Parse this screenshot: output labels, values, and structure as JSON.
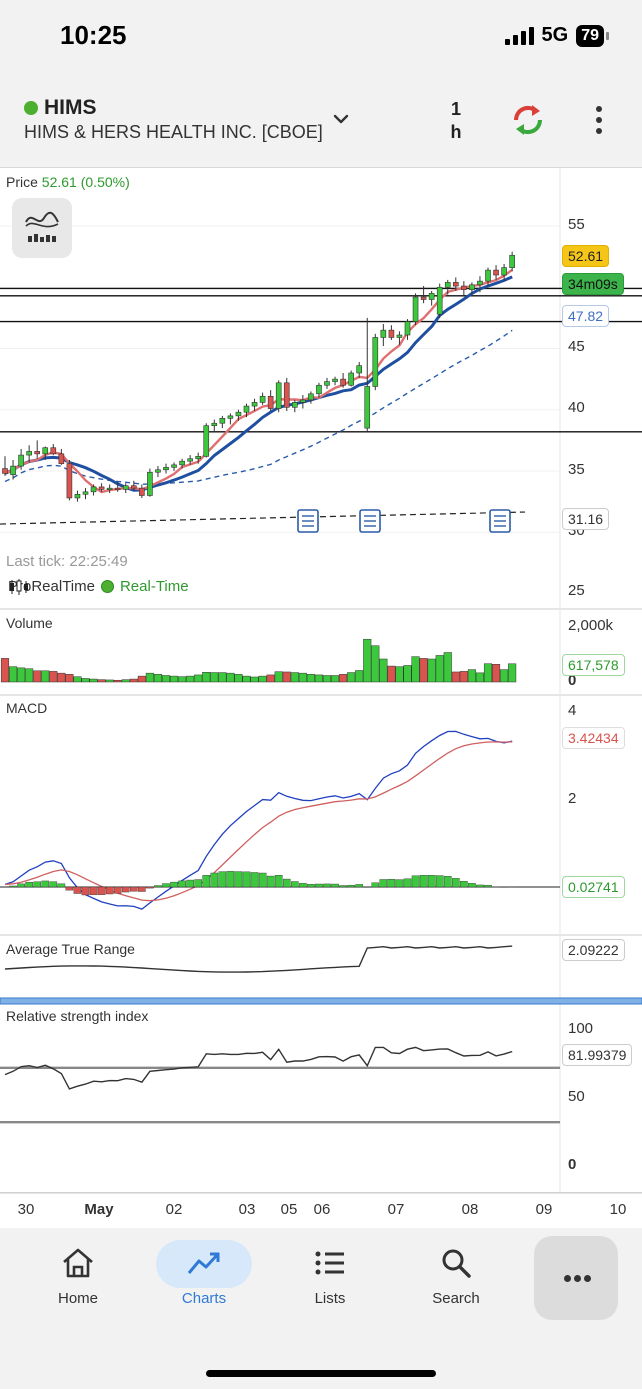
{
  "status_bar": {
    "time": "10:25",
    "network": "5G",
    "battery": "79"
  },
  "header": {
    "ticker": "HIMS",
    "company": "HIMS & HERS HEALTH INC. [CBOE]",
    "interval": "1\nh",
    "interval_value": "1",
    "interval_unit": "h"
  },
  "price_panel": {
    "title": "Price",
    "price": "52.61",
    "change": "(0.50%)",
    "last_tick": "Last tick: 22:25:49",
    "source": "ProRealTime",
    "realtime": "Real-Time",
    "y_ticks": [
      "55",
      "45",
      "40",
      "35",
      "30",
      "25"
    ],
    "tags": {
      "last_price": "52.61",
      "countdown": "34m09s",
      "ma_level": "47.82",
      "long_ma_level": "31.16"
    }
  },
  "volume_panel": {
    "title": "Volume",
    "y_top": "2,000k",
    "y_bottom": "0",
    "last": "617,578"
  },
  "macd_panel": {
    "title": "MACD",
    "y_ticks": [
      "4",
      "2"
    ],
    "macd_value": "3.42434",
    "hist_value": "0.02741"
  },
  "atr_panel": {
    "title": "Average True Range",
    "value": "2.09222"
  },
  "rsi_panel": {
    "title": "Relative strength index",
    "y_ticks": [
      "100",
      "50",
      "0"
    ],
    "value": "81.99379"
  },
  "x_axis": [
    {
      "label": "30",
      "bold": false
    },
    {
      "label": "May",
      "bold": true
    },
    {
      "label": "02",
      "bold": false
    },
    {
      "label": "03",
      "bold": false
    },
    {
      "label": "05",
      "bold": false
    },
    {
      "label": "06",
      "bold": false
    },
    {
      "label": "07",
      "bold": false
    },
    {
      "label": "08",
      "bold": false
    },
    {
      "label": "09",
      "bold": false
    },
    {
      "label": "10",
      "bold": false
    }
  ],
  "tabs": [
    {
      "label": "Home",
      "icon": "home-icon"
    },
    {
      "label": "Charts",
      "icon": "chart-icon"
    },
    {
      "label": "Lists",
      "icon": "list-icon"
    },
    {
      "label": "Search",
      "icon": "search-icon"
    }
  ],
  "colors": {
    "up": "#3cc83c",
    "down": "#d9534f",
    "ma_fast": "#e07070",
    "ma_slow": "#1f4fa0",
    "accent": "#2f7ad6"
  },
  "chart_data": {
    "type": "candlestick",
    "price_range": [
      25,
      56
    ],
    "horizontal_levels": [
      49.9,
      49.3,
      47.2,
      38.2,
      31.16
    ],
    "candles": [
      [
        35.2,
        36.2,
        34.6,
        34.8
      ],
      [
        34.7,
        35.9,
        34.3,
        35.4
      ],
      [
        35.4,
        36.8,
        35.1,
        36.3
      ],
      [
        36.3,
        37.1,
        35.7,
        36.6
      ],
      [
        36.6,
        37.5,
        36.0,
        36.4
      ],
      [
        36.4,
        37.0,
        35.9,
        36.9
      ],
      [
        36.9,
        37.2,
        36.3,
        36.4
      ],
      [
        36.4,
        36.8,
        35.5,
        35.6
      ],
      [
        35.6,
        35.9,
        32.6,
        32.8
      ],
      [
        32.8,
        33.4,
        32.5,
        33.1
      ],
      [
        33.1,
        33.6,
        32.7,
        33.3
      ],
      [
        33.3,
        33.9,
        33.0,
        33.7
      ],
      [
        33.7,
        34.0,
        33.3,
        33.5
      ],
      [
        33.5,
        33.9,
        33.2,
        33.6
      ],
      [
        33.6,
        34.1,
        33.3,
        33.5
      ],
      [
        33.5,
        34.0,
        33.2,
        33.8
      ],
      [
        33.8,
        34.2,
        33.4,
        33.6
      ],
      [
        33.6,
        33.9,
        32.8,
        33.0
      ],
      [
        33.0,
        35.2,
        32.9,
        34.9
      ],
      [
        34.9,
        35.4,
        34.5,
        35.1
      ],
      [
        35.1,
        35.6,
        34.8,
        35.3
      ],
      [
        35.3,
        35.7,
        35.0,
        35.5
      ],
      [
        35.5,
        36.0,
        35.2,
        35.8
      ],
      [
        35.8,
        36.3,
        35.5,
        36.0
      ],
      [
        36.0,
        36.5,
        35.6,
        36.2
      ],
      [
        36.2,
        38.9,
        36.1,
        38.7
      ],
      [
        38.7,
        39.2,
        38.2,
        38.9
      ],
      [
        38.9,
        39.5,
        38.5,
        39.3
      ],
      [
        39.3,
        39.7,
        38.8,
        39.5
      ],
      [
        39.5,
        40.0,
        39.1,
        39.8
      ],
      [
        39.8,
        40.5,
        39.4,
        40.3
      ],
      [
        40.3,
        40.9,
        39.9,
        40.6
      ],
      [
        40.6,
        41.4,
        40.4,
        41.1
      ],
      [
        41.1,
        41.6,
        39.9,
        40.1
      ],
      [
        40.1,
        42.4,
        39.8,
        42.2
      ],
      [
        42.2,
        42.6,
        39.9,
        40.2
      ],
      [
        40.2,
        40.8,
        39.8,
        40.6
      ],
      [
        40.6,
        41.2,
        40.1,
        40.8
      ],
      [
        40.8,
        41.5,
        40.5,
        41.3
      ],
      [
        41.3,
        42.2,
        41.0,
        42.0
      ],
      [
        42.0,
        42.6,
        41.7,
        42.3
      ],
      [
        42.3,
        42.7,
        42.0,
        42.5
      ],
      [
        42.5,
        43.0,
        41.8,
        42.0
      ],
      [
        42.0,
        43.2,
        41.9,
        43.0
      ],
      [
        43.0,
        43.9,
        42.6,
        43.6
      ],
      [
        38.5,
        47.5,
        38.2,
        41.9
      ],
      [
        41.9,
        46.2,
        41.6,
        45.9
      ],
      [
        45.9,
        47.0,
        45.2,
        46.5
      ],
      [
        46.5,
        46.9,
        45.7,
        45.9
      ],
      [
        45.9,
        46.4,
        45.3,
        46.1
      ],
      [
        46.1,
        47.4,
        45.7,
        47.2
      ],
      [
        47.2,
        49.5,
        46.9,
        49.2
      ],
      [
        49.2,
        50.1,
        48.7,
        49.0
      ],
      [
        49.0,
        49.7,
        48.5,
        49.5
      ],
      [
        47.8,
        50.3,
        47.5,
        50.0
      ],
      [
        50.0,
        50.6,
        49.4,
        50.4
      ],
      [
        50.4,
        50.8,
        49.7,
        50.1
      ],
      [
        50.1,
        50.5,
        49.3,
        49.8
      ],
      [
        49.8,
        50.4,
        49.4,
        50.2
      ],
      [
        50.2,
        50.9,
        49.6,
        50.5
      ],
      [
        50.5,
        51.6,
        50.1,
        51.4
      ],
      [
        51.4,
        51.8,
        50.6,
        51.0
      ],
      [
        51.0,
        51.9,
        50.5,
        51.6
      ],
      [
        51.6,
        52.9,
        51.3,
        52.61
      ]
    ],
    "volume_k": [
      800,
      520,
      480,
      450,
      380,
      380,
      360,
      300,
      260,
      180,
      120,
      100,
      80,
      70,
      60,
      80,
      100,
      200,
      300,
      260,
      220,
      200,
      180,
      200,
      240,
      330,
      320,
      320,
      300,
      260,
      200,
      170,
      200,
      240,
      350,
      340,
      320,
      300,
      260,
      240,
      220,
      220,
      260,
      320,
      390,
      1450,
      1230,
      780,
      540,
      520,
      560,
      860,
      800,
      780,
      900,
      1000,
      340,
      360,
      420,
      310,
      620,
      600,
      420,
      617.578
    ],
    "macd_last": 3.42434,
    "macd_hist_last": 0.02741,
    "atr_last": 2.09222,
    "rsi_last": 81.99379
  }
}
